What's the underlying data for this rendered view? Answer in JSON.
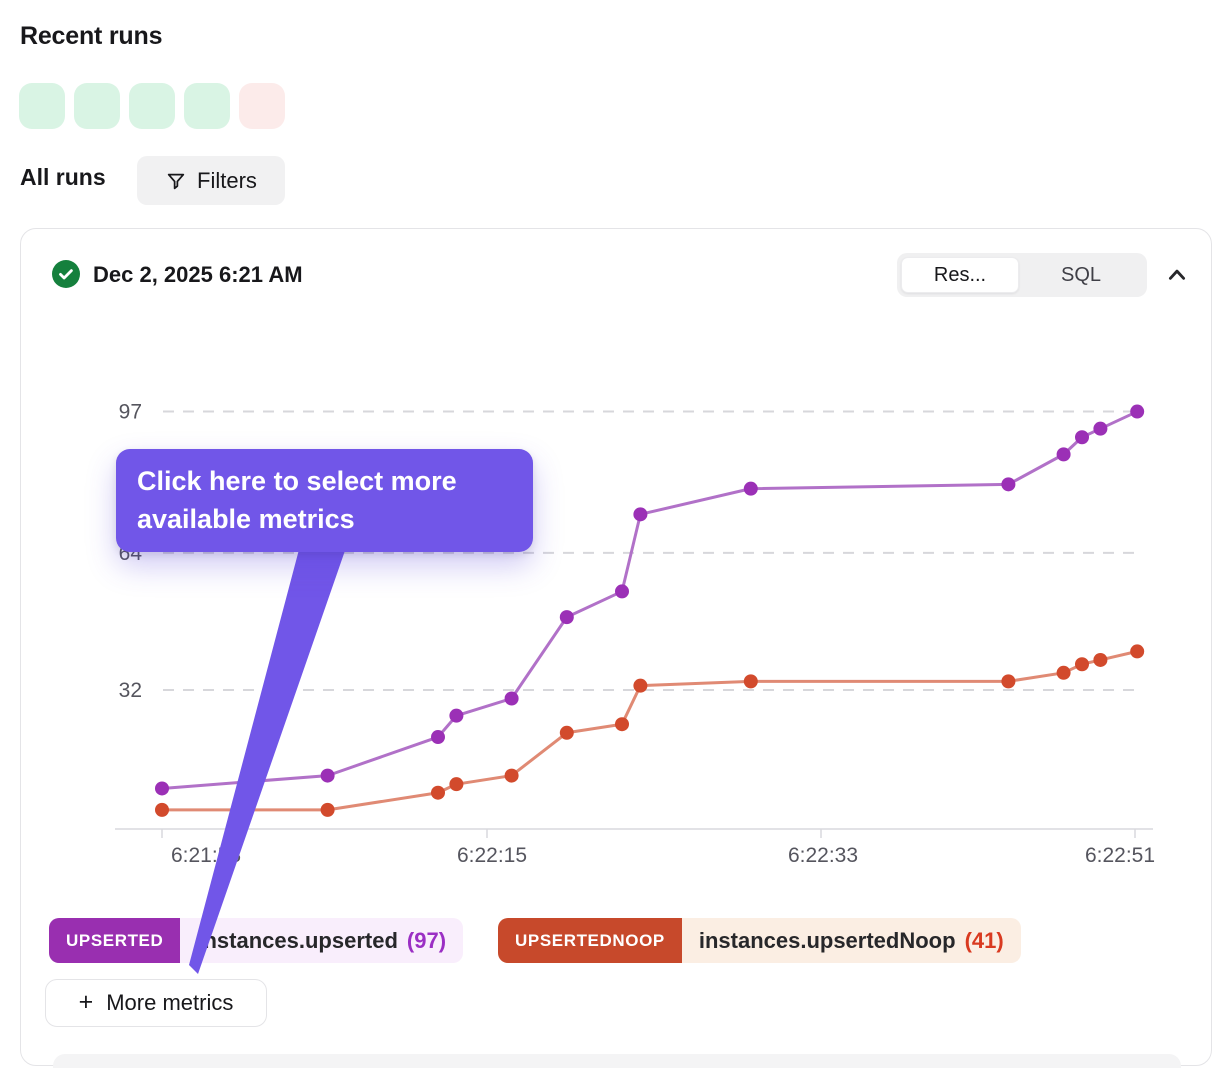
{
  "page": {
    "title": "Recent runs"
  },
  "runs_strip": {
    "statuses": [
      "success",
      "success",
      "success",
      "success",
      "error"
    ],
    "colors": {
      "success": "#d9f4e4",
      "error": "#fcebea"
    }
  },
  "toolbar": {
    "all_runs_label": "All runs",
    "filters_label": "Filters"
  },
  "run_card": {
    "status": "success",
    "timestamp": "Dec 2, 2025 6:21 AM",
    "tabs": [
      {
        "label": "Res...",
        "active": true
      },
      {
        "label": "SQL",
        "active": false
      }
    ],
    "collapse_icon": "chevron-up"
  },
  "tooltip": {
    "text": "Click here to select more available metrics",
    "color": "#7156e8"
  },
  "legend": [
    {
      "badge": "UPSERTED",
      "badge_color": "#992fb0",
      "label": "instances.upserted",
      "count": "(97)",
      "count_color": "#9b2fc4",
      "bg": "#f9eefc"
    },
    {
      "badge": "UPSERTEDNOOP",
      "badge_color": "#c7492b",
      "label": "instances.upsertedNoop",
      "count": "(41)",
      "count_color": "#d93a20",
      "bg": "#fbeee3"
    }
  ],
  "more_metrics": {
    "label": "More metrics",
    "plus": "+"
  },
  "chart_data": {
    "type": "line",
    "title": "",
    "xlabel": "",
    "ylabel": "",
    "grid": "dashed-horizontal",
    "legend_position": "bottom",
    "x_axis": {
      "tick_labels": [
        "6:21:58",
        "6:22:15",
        "6:22:33",
        "6:22:51"
      ],
      "tick_offsets_sec": [
        0,
        17,
        35,
        53
      ]
    },
    "y_axis": {
      "ticks": [
        32,
        64,
        97
      ],
      "min": 0,
      "max": 97
    },
    "x_offsets_sec": [
      0,
      9,
      15,
      16,
      19,
      22,
      25,
      26,
      32,
      46,
      49,
      50,
      51,
      53
    ],
    "series": [
      {
        "name": "instances.upserted",
        "final_count": 97,
        "line_color": "#b171c8",
        "point_color": "#9b30b6",
        "values": [
          9,
          12,
          21,
          26,
          30,
          49,
          55,
          73,
          79,
          80,
          87,
          91,
          93,
          97
        ]
      },
      {
        "name": "instances.upsertedNoop",
        "final_count": 41,
        "line_color": "#e08a74",
        "point_color": "#d24a2c",
        "values": [
          4,
          4,
          8,
          10,
          12,
          22,
          24,
          33,
          34,
          34,
          36,
          38,
          39,
          41
        ]
      }
    ]
  }
}
